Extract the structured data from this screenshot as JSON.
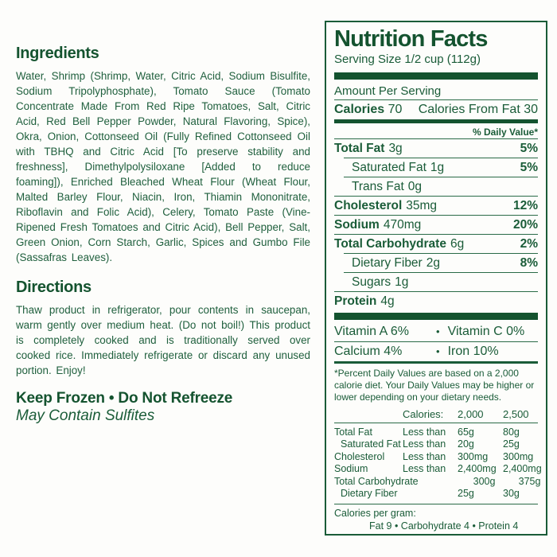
{
  "colors": {
    "accent_green": "#1a5c38",
    "dark_green": "#14532f",
    "background": "#fdfdfb"
  },
  "left_panel": {
    "ingredients": {
      "heading": "Ingredients",
      "body": "Water, Shrimp (Shrimp, Water, Citric Acid, Sodium Bisulfite, Sodium Tripolyphosphate), Tomato Sauce (Tomato Concentrate Made From Red Ripe Tomatoes, Salt, Citric Acid, Red Bell Pepper Powder, Natural Flavoring, Spice), Okra, Onion, Cottonseed Oil (Fully Refined Cottonseed Oil with TBHQ and Citric Acid [To preserve stability and freshness], Dimethylpolysiloxane [Added to reduce foaming]), Enriched Bleached Wheat Flour (Wheat Flour, Malted Barley Flour, Niacin, Iron, Thiamin Mononitrate, Riboflavin and Folic Acid), Celery, Tomato Paste (Vine-Ripened Fresh Tomatoes and Citric Acid), Bell Pepper, Salt, Green Onion, Corn Starch, Garlic, Spices and Gumbo File (Sassafras Leaves)."
    },
    "directions": {
      "heading": "Directions",
      "body": "Thaw product in refrigerator, pour contents in saucepan, warm gently over medium heat. (Do not boil!) This product is completely cooked and is traditionally served over cooked rice. Immediately refrigerate or discard any unused portion.  Enjoy!"
    },
    "storage_line": "Keep Frozen • Do Not Refreeze",
    "sulfites_line": "May Contain Sulfites"
  },
  "nutrition_facts": {
    "title": "Nutrition Facts",
    "serving_size": "Serving Size 1/2 cup (112g)",
    "amount_per_serving": "Amount Per Serving",
    "calories_label": "Calories",
    "calories_value": "70",
    "calories_from_fat": "Calories From Fat 30",
    "daily_value_header": "% Daily Value*",
    "bullet": "•",
    "rows": [
      {
        "label": "Total Fat",
        "amount": "3g",
        "dv": "5%"
      },
      {
        "label": "Saturated Fat",
        "amount": "1g",
        "dv": "5%"
      },
      {
        "label": "Trans Fat",
        "amount": "0g",
        "dv": ""
      },
      {
        "label": "Cholesterol",
        "amount": "35mg",
        "dv": "12%"
      },
      {
        "label": "Sodium",
        "amount": "470mg",
        "dv": "20%"
      },
      {
        "label": "Total Carbohydrate",
        "amount": "6g",
        "dv": "2%"
      },
      {
        "label": "Dietary Fiber",
        "amount": "2g",
        "dv": "8%"
      },
      {
        "label": "Sugars",
        "amount": "1g",
        "dv": ""
      },
      {
        "label": "Protein",
        "amount": "4g",
        "dv": ""
      }
    ],
    "vitamins": [
      {
        "left": "Vitamin A 6%",
        "right": "Vitamin C 0%"
      },
      {
        "left": "Calcium 4%",
        "right": "Iron 10%"
      }
    ],
    "footnote": "*Percent Daily Values are based on a 2,000 calorie diet. Your Daily Values may be higher or lower depending on your dietary needs.",
    "dv_table": {
      "header": {
        "label": "Calories:",
        "col1": "2,000",
        "col2": "2,500"
      },
      "rows": [
        {
          "label": "Total Fat",
          "qualifier": "Less than",
          "col1": "65g",
          "col2": "80g"
        },
        {
          "label": "Saturated Fat",
          "qualifier": "Less than",
          "col1": "20g",
          "col2": "25g"
        },
        {
          "label": "Cholesterol",
          "qualifier": "Less than",
          "col1": "300mg",
          "col2": "300mg"
        },
        {
          "label": "Sodium",
          "qualifier": "Less than",
          "col1": "2,400mg",
          "col2": "2,400mg"
        },
        {
          "label": "Total Carbohydrate",
          "qualifier": "",
          "col1": "300g",
          "col2": "375g"
        },
        {
          "label": "Dietary Fiber",
          "qualifier": "",
          "col1": "25g",
          "col2": "30g"
        }
      ]
    },
    "calories_per_gram": {
      "label": "Calories per gram:",
      "values": "Fat 9  •  Carbohydrate 4  •  Protein 4"
    }
  }
}
